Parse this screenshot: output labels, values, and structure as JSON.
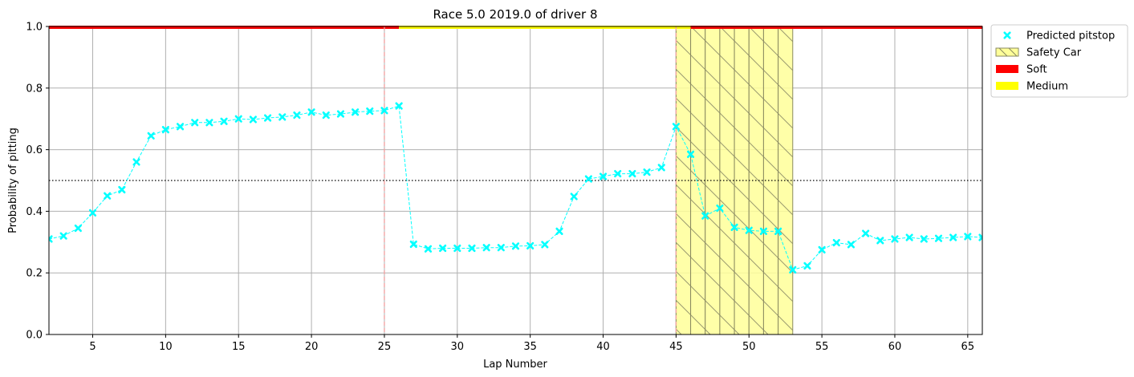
{
  "chart_data": {
    "type": "line",
    "title": "Race 5.0 2019.0 of driver 8",
    "xlabel": "Lap Number",
    "ylabel": "Probability of pitting",
    "xlim": [
      2,
      66
    ],
    "ylim": [
      0,
      1
    ],
    "x_ticks": [
      5,
      10,
      15,
      20,
      25,
      30,
      35,
      40,
      45,
      50,
      55,
      60,
      65
    ],
    "y_ticks": [
      0.0,
      0.2,
      0.4,
      0.6,
      0.8,
      1.0
    ],
    "x_tick_labels": [
      "5",
      "10",
      "15",
      "20",
      "25",
      "30",
      "35",
      "40",
      "45",
      "50",
      "55",
      "60",
      "65"
    ],
    "y_tick_labels": [
      "0.0",
      "0.2",
      "0.4",
      "0.6",
      "0.8",
      "1.0"
    ],
    "grid": true,
    "threshold": 0.5,
    "pit_laps": [
      25,
      45
    ],
    "legend_position": "outside top-right",
    "series": [
      {
        "name": "Predicted pitstop",
        "color": "#00ffff",
        "x": [
          2,
          3,
          4,
          5,
          6,
          7,
          8,
          9,
          10,
          11,
          12,
          13,
          14,
          15,
          16,
          17,
          18,
          19,
          20,
          21,
          22,
          23,
          24,
          25,
          26,
          27,
          28,
          29,
          30,
          31,
          32,
          33,
          34,
          35,
          36,
          37,
          38,
          39,
          40,
          41,
          42,
          43,
          44,
          45,
          46,
          47,
          48,
          49,
          50,
          51,
          52,
          53,
          54,
          55,
          56,
          57,
          58,
          59,
          60,
          61,
          62,
          63,
          64,
          65,
          66
        ],
        "y": [
          0.31,
          0.32,
          0.345,
          0.395,
          0.45,
          0.47,
          0.56,
          0.645,
          0.665,
          0.675,
          0.688,
          0.688,
          0.692,
          0.7,
          0.698,
          0.703,
          0.706,
          0.712,
          0.722,
          0.712,
          0.716,
          0.722,
          0.725,
          0.727,
          0.742,
          0.293,
          0.278,
          0.28,
          0.28,
          0.28,
          0.282,
          0.282,
          0.287,
          0.288,
          0.292,
          0.335,
          0.448,
          0.505,
          0.513,
          0.522,
          0.522,
          0.527,
          0.542,
          0.675,
          0.585,
          0.385,
          0.41,
          0.348,
          0.338,
          0.335,
          0.335,
          0.21,
          0.223,
          0.275,
          0.298,
          0.292,
          0.328,
          0.305,
          0.31,
          0.315,
          0.31,
          0.312,
          0.315,
          0.318,
          0.315
        ]
      }
    ],
    "safety_car": {
      "name": "Safety Car",
      "color": "#ffff99",
      "laps": [
        45,
        46,
        47,
        48,
        49,
        50,
        51,
        52
      ]
    },
    "tyre_compounds": [
      {
        "name": "Soft",
        "color": "#ff0000",
        "from": 2,
        "to": 26
      },
      {
        "name": "Medium",
        "color": "#ffff00",
        "from": 26,
        "to": 46
      },
      {
        "name": "Soft",
        "color": "#ff0000",
        "from": 46,
        "to": 66
      }
    ],
    "legend": [
      {
        "label": "Predicted pitstop",
        "kind": "marker",
        "color": "#00ffff"
      },
      {
        "label": "Safety Car",
        "kind": "hatch",
        "color": "#ffff99"
      },
      {
        "label": "Soft",
        "kind": "patch",
        "color": "#ff0000"
      },
      {
        "label": "Medium",
        "kind": "patch",
        "color": "#ffff00"
      }
    ]
  }
}
